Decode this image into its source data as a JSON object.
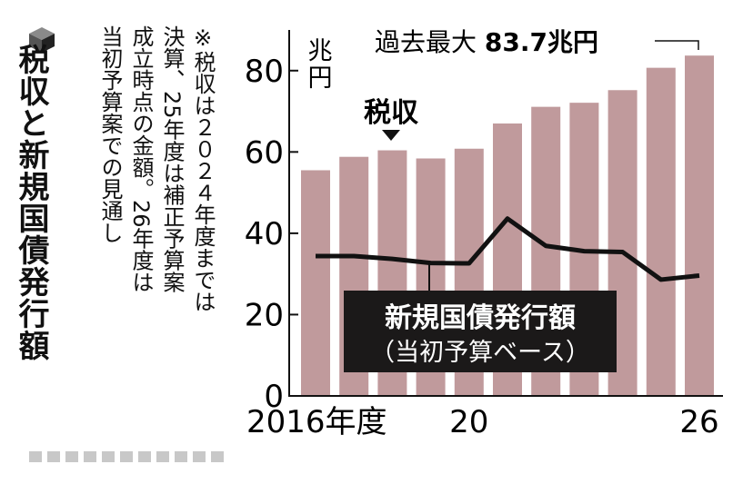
{
  "title": "税収と新規国債発行額",
  "note_mark": "※",
  "note_lines": [
    "税収は２０２４年度までは",
    "決算、25年度は補正予算案",
    "成立時点の金額。26年度は",
    "当初予算案での見通し"
  ],
  "chart_data": {
    "type": "bar",
    "unit_label": "兆円",
    "categories": [
      "2016",
      "2017",
      "2018",
      "2019",
      "2020",
      "2021",
      "2022",
      "2023",
      "2024",
      "2025",
      "2026"
    ],
    "x_tick_labels": [
      {
        "index": 0,
        "label": "2016年度"
      },
      {
        "index": 4,
        "label": "20"
      },
      {
        "index": 10,
        "label": "26"
      }
    ],
    "series": [
      {
        "name": "税収",
        "type": "bar",
        "values": [
          55.5,
          58.8,
          60.4,
          58.4,
          60.8,
          67.0,
          71.1,
          72.1,
          75.2,
          80.7,
          83.7
        ]
      },
      {
        "name": "新規国債発行額（当初予算ベース）",
        "type": "line",
        "values": [
          34.4,
          34.4,
          33.7,
          32.7,
          32.6,
          43.6,
          36.9,
          35.6,
          35.4,
          28.6,
          29.6
        ]
      }
    ],
    "ylim": [
      0,
      90
    ],
    "yticks": [
      0,
      20,
      40,
      60,
      80
    ],
    "annotations": {
      "bar_label": "税収",
      "line_label_1": "新規国債発行額",
      "line_label_2": "（当初予算ベース）",
      "max_label_prefix": "過去最大 ",
      "max_label_value": "83.7兆円"
    },
    "colors": {
      "bar": "#c09a9c",
      "line": "#111111",
      "box": "#1b1919"
    }
  }
}
